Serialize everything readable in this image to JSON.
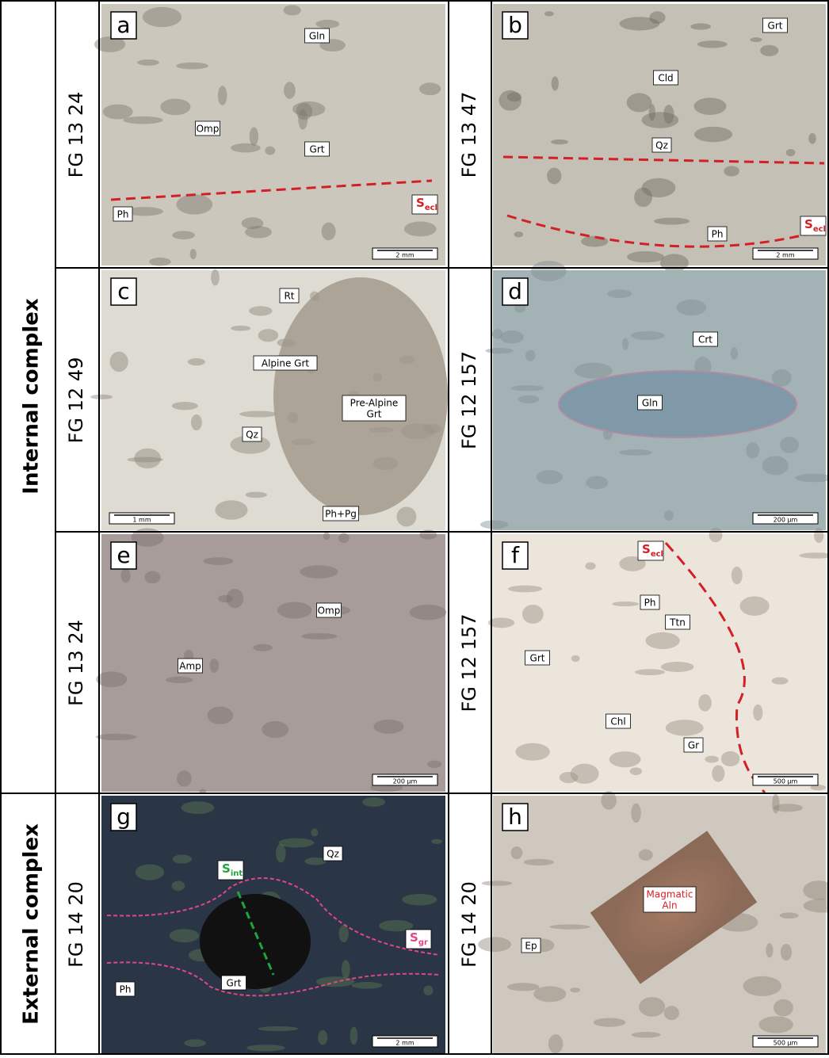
{
  "groups": [
    {
      "label": "Internal complex"
    },
    {
      "label": "External complex"
    }
  ],
  "panels": [
    {
      "letter": "a",
      "sample": "FG 13 24",
      "scale_bar": "2 mm",
      "labels": [
        {
          "lines": [
            "Gln"
          ]
        },
        {
          "lines": [
            "Omp"
          ]
        },
        {
          "lines": [
            "Grt"
          ]
        },
        {
          "lines": [
            "Ph"
          ]
        }
      ],
      "foliations": [
        {
          "main": "S",
          "sub": "ecl"
        }
      ]
    },
    {
      "letter": "b",
      "sample": "FG 13 47",
      "scale_bar": "2 mm",
      "labels": [
        {
          "lines": [
            "Grt"
          ]
        },
        {
          "lines": [
            "Cld"
          ]
        },
        {
          "lines": [
            "Qz"
          ]
        },
        {
          "lines": [
            "Ph"
          ]
        }
      ],
      "foliations": [
        {
          "main": "S",
          "sub": "ecl"
        }
      ]
    },
    {
      "letter": "c",
      "sample": "FG 12 49",
      "scale_bar": "1 mm",
      "labels": [
        {
          "lines": [
            "Rt"
          ]
        },
        {
          "lines": [
            "Alpine Grt"
          ]
        },
        {
          "lines": [
            "Pre-Alpine",
            "Grt"
          ]
        },
        {
          "lines": [
            "Qz"
          ]
        },
        {
          "lines": [
            "Ph+Pg"
          ]
        }
      ],
      "foliations": []
    },
    {
      "letter": "d",
      "sample": "FG 12 157",
      "scale_bar": "200 µm",
      "labels": [
        {
          "lines": [
            "Crt"
          ]
        },
        {
          "lines": [
            "Gln"
          ]
        }
      ],
      "foliations": []
    },
    {
      "letter": "e",
      "sample": "FG 13 24",
      "scale_bar": "200 µm",
      "labels": [
        {
          "lines": [
            "Omp"
          ]
        },
        {
          "lines": [
            "Amp"
          ]
        }
      ],
      "foliations": []
    },
    {
      "letter": "f",
      "sample": "FG 12 157",
      "scale_bar": "500 µm",
      "labels": [
        {
          "lines": [
            "Ph"
          ]
        },
        {
          "lines": [
            "Ttn"
          ]
        },
        {
          "lines": [
            "Grt"
          ]
        },
        {
          "lines": [
            "Chl"
          ]
        },
        {
          "lines": [
            "Gr"
          ]
        }
      ],
      "foliations": [
        {
          "main": "S",
          "sub": "ecl"
        }
      ]
    },
    {
      "letter": "g",
      "sample": "FG 14 20",
      "scale_bar": "2 mm",
      "labels": [
        {
          "lines": [
            "Qz"
          ]
        },
        {
          "lines": [
            "Grt"
          ]
        },
        {
          "lines": [
            "Ph"
          ]
        }
      ],
      "foliations": [
        {
          "main": "S",
          "sub": "int"
        },
        {
          "main": "S",
          "sub": "gr"
        }
      ]
    },
    {
      "letter": "h",
      "sample": "FG 14 20",
      "scale_bar": "500 µm",
      "labels": [
        {
          "lines": [
            "Magmatic",
            "Aln"
          ]
        },
        {
          "lines": [
            "Ep"
          ]
        }
      ],
      "foliations": []
    }
  ]
}
